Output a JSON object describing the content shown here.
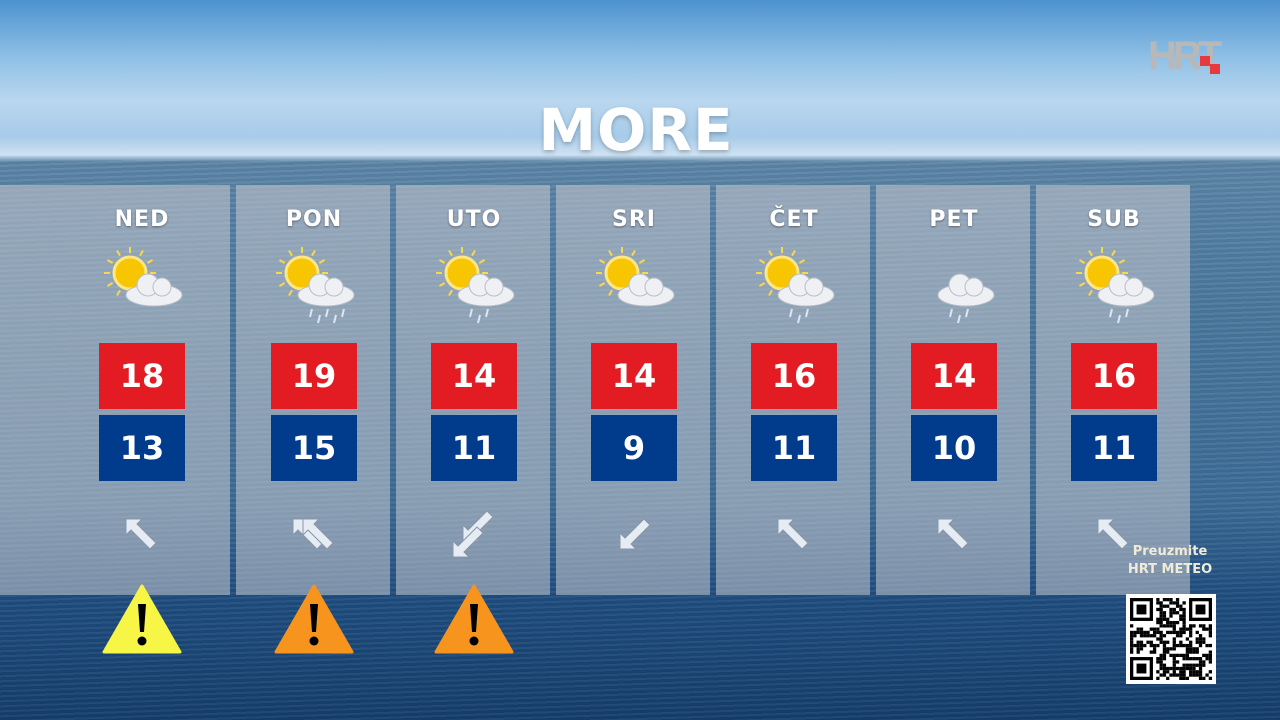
{
  "logo": {
    "text": "HRT",
    "accent": "#e8393f"
  },
  "title": "MORE",
  "days": [
    {
      "day": "NED",
      "weather": "sun-behind-cloud",
      "max": "18",
      "min": "13",
      "wind": "nw",
      "wind_count": 1,
      "warning": "yellow"
    },
    {
      "day": "PON",
      "weather": "sun-cloud-rain",
      "max": "19",
      "min": "15",
      "wind": "nw",
      "wind_count": 2,
      "warning": "orange"
    },
    {
      "day": "UTO",
      "weather": "sun-cloud-light-rain",
      "max": "14",
      "min": "11",
      "wind": "sw",
      "wind_count": 2,
      "warning": "orange"
    },
    {
      "day": "SRI",
      "weather": "sun-behind-cloud",
      "max": "14",
      "min": "9",
      "wind": "sw",
      "wind_count": 1,
      "warning": null
    },
    {
      "day": "ČET",
      "weather": "sun-cloud-light-rain",
      "max": "16",
      "min": "11",
      "wind": "nw",
      "wind_count": 1,
      "warning": null
    },
    {
      "day": "PET",
      "weather": "cloud-light-rain",
      "max": "14",
      "min": "10",
      "wind": "nw",
      "wind_count": 1,
      "warning": null
    },
    {
      "day": "SUB",
      "weather": "sun-cloud-light-rain",
      "max": "16",
      "min": "11",
      "wind": "nw",
      "wind_count": 1,
      "warning": null
    }
  ],
  "colors": {
    "max": "#e31b23",
    "min": "#003b8c",
    "warning_yellow": "#f7f545",
    "warning_orange": "#f7941d"
  },
  "promo": {
    "line1": "Preuzmite",
    "line2": "HRT METEO"
  }
}
